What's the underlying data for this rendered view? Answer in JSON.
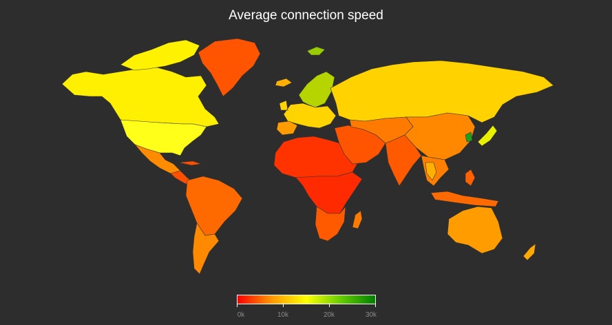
{
  "title": "Average connection speed",
  "legend": {
    "colors": [
      "#ff0000",
      "#ff9900",
      "#ffff00",
      "#66cc00",
      "#008000"
    ],
    "ticks": [
      "0k",
      "10k",
      "20k",
      "30k"
    ]
  },
  "colors": {
    "background": "#2d2d2d",
    "border": "#333333"
  },
  "regions": [
    {
      "name": "north-america",
      "fill": "#ffef00"
    },
    {
      "name": "usa",
      "fill": "#ffff1a"
    },
    {
      "name": "canadian-arctic",
      "fill": "#fff200"
    },
    {
      "name": "greenland",
      "fill": "#ff5500"
    },
    {
      "name": "mexico",
      "fill": "#ff8c00"
    },
    {
      "name": "central-america",
      "fill": "#ff5000"
    },
    {
      "name": "south-america",
      "fill": "#ff6a00"
    },
    {
      "name": "southern-cone",
      "fill": "#ff8a00"
    },
    {
      "name": "iceland",
      "fill": "#ffb000"
    },
    {
      "name": "scandinavia",
      "fill": "#b6d400"
    },
    {
      "name": "svalbard",
      "fill": "#99cc00"
    },
    {
      "name": "western-europe",
      "fill": "#ffd400"
    },
    {
      "name": "iberia",
      "fill": "#ff9d00"
    },
    {
      "name": "russia",
      "fill": "#ffd200"
    },
    {
      "name": "north-africa",
      "fill": "#ff3300"
    },
    {
      "name": "central-africa",
      "fill": "#ff2a00"
    },
    {
      "name": "southern-africa",
      "fill": "#ff5a00"
    },
    {
      "name": "madagascar",
      "fill": "#ff7a00"
    },
    {
      "name": "middle-east",
      "fill": "#ff5400"
    },
    {
      "name": "central-asia",
      "fill": "#ff7a00"
    },
    {
      "name": "china",
      "fill": "#ff8800"
    },
    {
      "name": "india",
      "fill": "#ff5a00"
    },
    {
      "name": "southeast-asia",
      "fill": "#ff8000"
    },
    {
      "name": "thailand",
      "fill": "#ffb000"
    },
    {
      "name": "south-korea",
      "fill": "#1aa31a"
    },
    {
      "name": "japan",
      "fill": "#e9f000"
    },
    {
      "name": "indonesia",
      "fill": "#ff6a00"
    },
    {
      "name": "philippines",
      "fill": "#ff6000"
    },
    {
      "name": "australia",
      "fill": "#ff9c00"
    },
    {
      "name": "new-zealand",
      "fill": "#ffa800"
    }
  ]
}
